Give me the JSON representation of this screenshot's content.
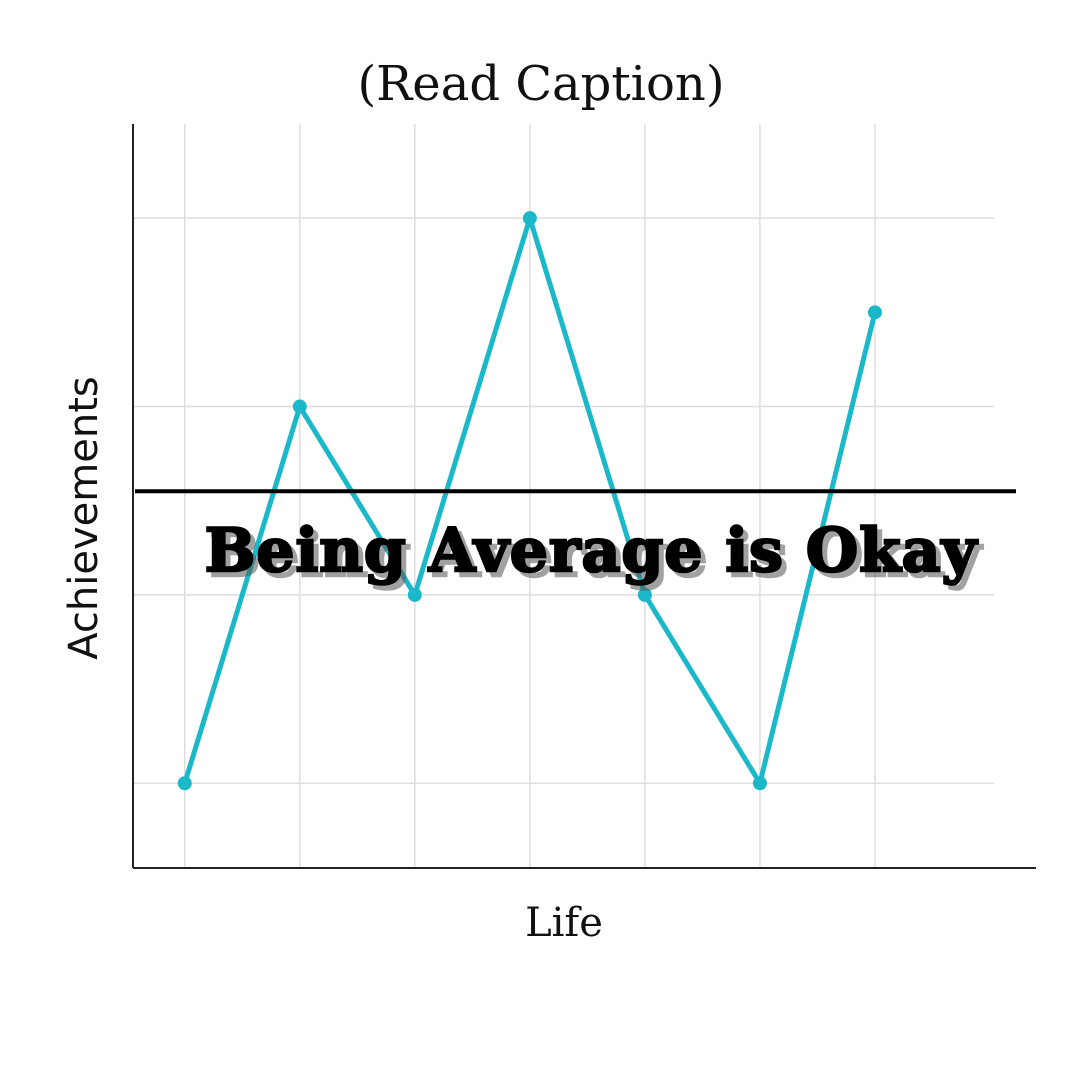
{
  "chart_data": {
    "type": "line",
    "title": "(Read Caption)",
    "xlabel": "Life",
    "ylabel": "Achievements",
    "x": [
      1,
      2,
      3,
      4,
      5,
      6,
      7
    ],
    "series": [
      {
        "values": [
          1,
          5,
          3,
          7,
          3,
          1,
          6
        ],
        "color": "#1ab8c8"
      }
    ],
    "reference_line": {
      "value": 4.1,
      "color": "#000000"
    },
    "annotation": "Being Average is Okay",
    "xlim": [
      0.55,
      8.4
    ],
    "ylim": [
      0.1,
      8.0
    ],
    "grid": true,
    "tick_labels_shown": false
  }
}
